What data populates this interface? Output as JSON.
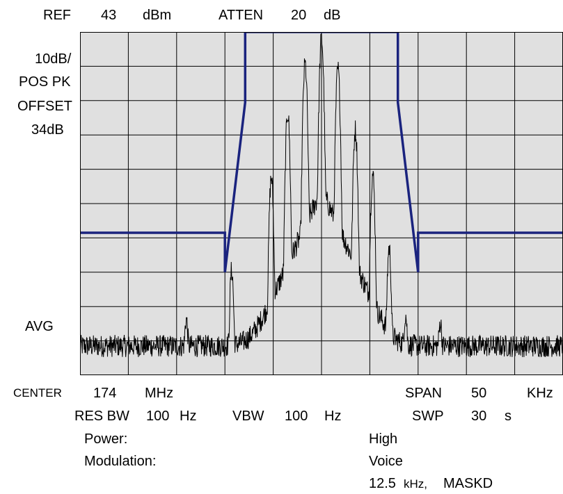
{
  "header": {
    "ref_label": "REF",
    "ref_value": "43",
    "ref_unit": "dBm",
    "atten_label": "ATTEN",
    "atten_value": "20",
    "atten_unit": "dB"
  },
  "left_labels": {
    "scale": "10dB/",
    "detector": "POS PK",
    "offset_label": "OFFSET",
    "offset_value": "34dB",
    "avg": "AVG"
  },
  "footer": {
    "center_label": "CENTER",
    "center_value": "174",
    "center_unit": "MHz",
    "span_label": "SPAN",
    "span_value": "50",
    "span_unit": "KHz",
    "resbw_label": "RES BW",
    "resbw_value": "100",
    "resbw_unit": "Hz",
    "vbw_label": "VBW",
    "vbw_value": "100",
    "vbw_unit": "Hz",
    "swp_label": "SWP",
    "swp_value": "30",
    "swp_unit": "s",
    "power_label": "Power:",
    "power_value": "High",
    "modulation_label": "Modulation:",
    "modulation_value": "Voice",
    "bandwidth_value": "12.5",
    "bandwidth_unit": "kHz,",
    "mask_value": "MASKD"
  },
  "chart_data": {
    "type": "line",
    "x_range_khz": [
      -25,
      25
    ],
    "y_range_db_below_ref": [
      -100,
      0
    ],
    "grid": true,
    "grid_divisions": {
      "x": 10,
      "y": 10
    },
    "colors": {
      "background": "#e0e0e0",
      "grid": "#000000",
      "trace": "#000000",
      "mask": "#1a237e"
    },
    "mask": {
      "name": "mask",
      "x": [
        -25,
        -10,
        -10,
        -7.9,
        -7.9,
        7.9,
        7.9,
        10,
        10,
        25
      ],
      "y": [
        -58.5,
        -58.5,
        -70,
        -20.5,
        0,
        0,
        -20.5,
        -70,
        -58.5,
        -58.5
      ]
    },
    "trace": {
      "noise_floor": -91.5,
      "peaks": [
        {
          "x": -14,
          "y": -84.5
        },
        {
          "x": -9.3,
          "y": -69.5
        },
        {
          "x": -5.2,
          "y": -42.5
        },
        {
          "x": -3.5,
          "y": -23.5
        },
        {
          "x": -1.7,
          "y": -9.5
        },
        {
          "x": 0,
          "y": -2
        },
        {
          "x": 1.7,
          "y": -11
        },
        {
          "x": 3.5,
          "y": -28.5
        },
        {
          "x": 5.3,
          "y": -41.5
        },
        {
          "x": 7.0,
          "y": -63
        },
        {
          "x": 8.7,
          "y": -83
        },
        {
          "x": 12.3,
          "y": -85.5
        }
      ]
    }
  }
}
